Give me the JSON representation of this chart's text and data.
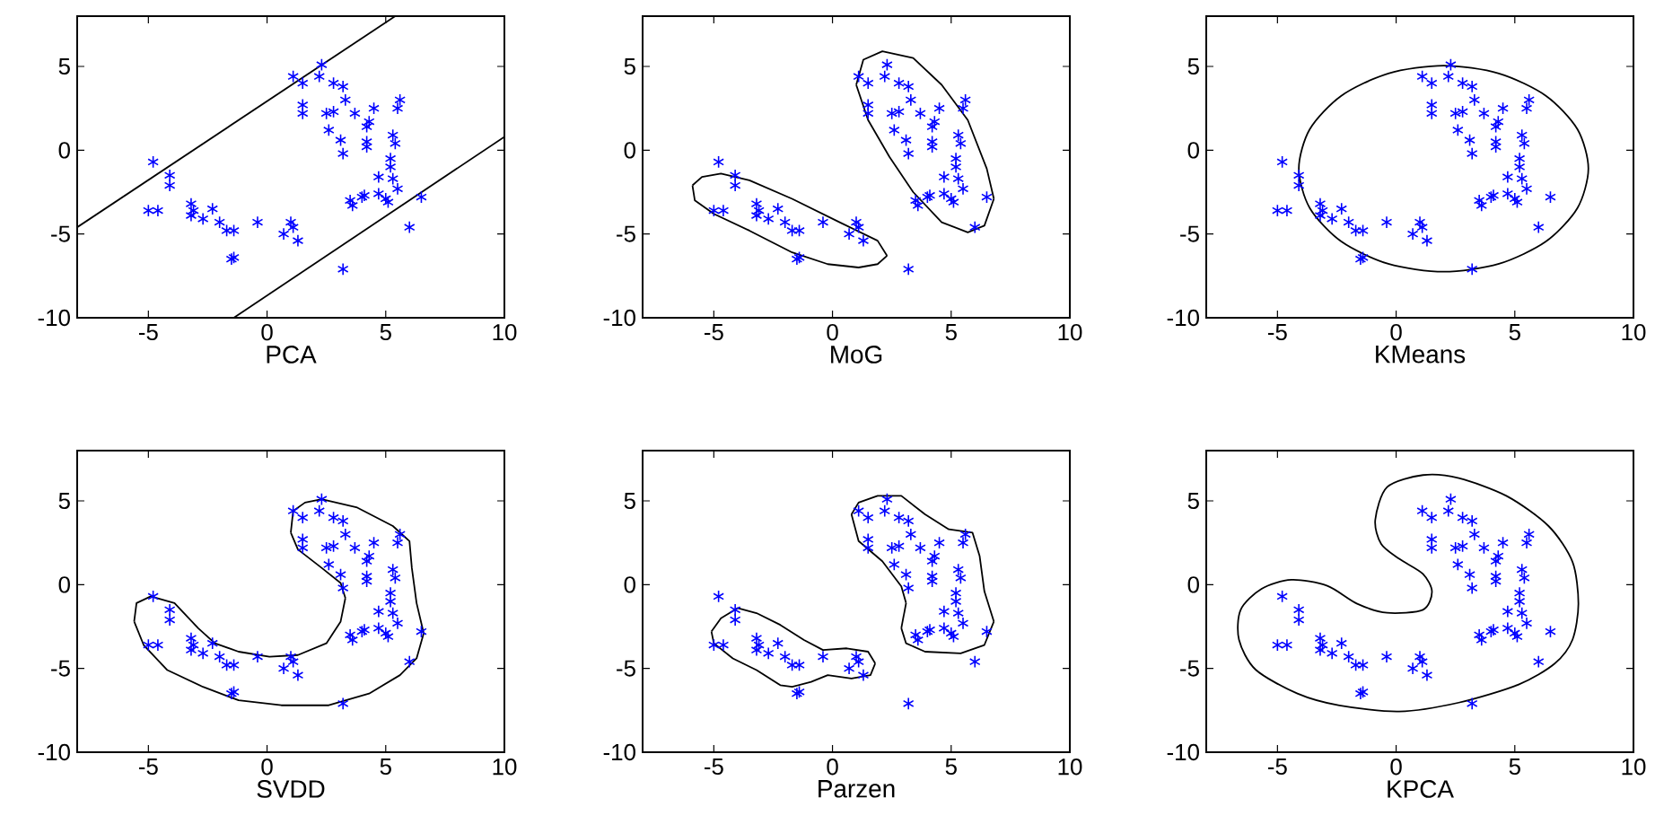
{
  "chart_data": [
    {
      "type": "scatter",
      "xlabel": "PCA",
      "xlim": [
        -8,
        10
      ],
      "ylim": [
        -10,
        8
      ],
      "xticks": [
        -5,
        0,
        5,
        10
      ],
      "yticks": [
        -10,
        -5,
        0,
        5
      ],
      "series": [
        {
          "marker": "cross",
          "color": "#0000ff",
          "x": [
            -4.8,
            -4.1,
            -4.1,
            -5.0,
            -4.6,
            -3.2,
            -3.1,
            -3.2,
            -2.7,
            -2.3,
            -2.0,
            -1.7,
            -1.4,
            -1.5,
            -1.4,
            -0.4,
            0.7,
            1.0,
            1.1,
            1.3,
            1.1,
            1.5,
            1.5,
            1.5,
            2.2,
            2.3,
            2.8,
            3.2,
            3.3,
            2.8,
            2.5,
            2.6,
            3.1,
            3.2,
            3.7,
            4.2,
            4.3,
            4.5,
            4.2,
            4.2,
            5.3,
            5.4,
            5.6,
            5.5,
            5.2,
            5.2,
            5.3,
            5.5,
            4.7,
            3.5,
            3.6,
            4.0,
            4.1,
            4.7,
            5.0,
            5.1,
            6.5,
            6.0,
            3.2
          ],
          "values": [
            -0.7,
            -1.5,
            -2.1,
            -3.6,
            -3.6,
            -3.2,
            -3.6,
            -3.9,
            -4.1,
            -3.5,
            -4.3,
            -4.8,
            -4.8,
            -6.5,
            -6.4,
            -4.3,
            -5.0,
            -4.3,
            -4.6,
            -5.4,
            4.4,
            4.0,
            2.7,
            2.2,
            4.4,
            5.1,
            4.0,
            3.8,
            3.0,
            2.3,
            2.2,
            1.2,
            0.6,
            -0.2,
            2.2,
            1.4,
            1.7,
            2.5,
            0.5,
            0.2,
            0.9,
            0.4,
            3.0,
            2.5,
            -0.5,
            -1.0,
            -1.7,
            -2.3,
            -1.6,
            -3.0,
            -3.3,
            -2.8,
            -2.7,
            -2.6,
            -2.9,
            -3.1,
            -2.8,
            -4.6,
            -7.1
          ]
        },
        {
          "type": "line",
          "color": "#000000",
          "x": [
            -8,
            5.4
          ],
          "values": [
            -4.6,
            8
          ]
        },
        {
          "type": "line",
          "color": "#000000",
          "x": [
            -1.4,
            10
          ],
          "values": [
            -10,
            0.8
          ]
        }
      ]
    },
    {
      "type": "scatter",
      "xlabel": "MoG",
      "xlim": [
        -8,
        10
      ],
      "ylim": [
        -10,
        8
      ],
      "xticks": [
        -5,
        0,
        5,
        10
      ],
      "yticks": [
        -10,
        -5,
        0,
        5
      ],
      "series": [
        {
          "marker": "cross",
          "color": "#0000ff",
          "x": [
            -4.8,
            -4.1,
            -4.1,
            -5.0,
            -4.6,
            -3.2,
            -3.1,
            -3.2,
            -2.7,
            -2.3,
            -2.0,
            -1.7,
            -1.4,
            -1.5,
            -1.4,
            -0.4,
            0.7,
            1.0,
            1.1,
            1.3,
            1.1,
            1.5,
            1.5,
            1.5,
            2.2,
            2.3,
            2.8,
            3.2,
            3.3,
            2.8,
            2.5,
            2.6,
            3.1,
            3.2,
            3.7,
            4.2,
            4.3,
            4.5,
            4.2,
            4.2,
            5.3,
            5.4,
            5.6,
            5.5,
            5.2,
            5.2,
            5.3,
            5.5,
            4.7,
            3.5,
            3.6,
            4.0,
            4.1,
            4.7,
            5.0,
            5.1,
            6.5,
            6.0,
            3.2
          ],
          "values": [
            -0.7,
            -1.5,
            -2.1,
            -3.6,
            -3.6,
            -3.2,
            -3.6,
            -3.9,
            -4.1,
            -3.5,
            -4.3,
            -4.8,
            -4.8,
            -6.5,
            -6.4,
            -4.3,
            -5.0,
            -4.3,
            -4.6,
            -5.4,
            4.4,
            4.0,
            2.7,
            2.2,
            4.4,
            5.1,
            4.0,
            3.8,
            3.0,
            2.3,
            2.2,
            1.2,
            0.6,
            -0.2,
            2.2,
            1.4,
            1.7,
            2.5,
            0.5,
            0.2,
            0.9,
            0.4,
            3.0,
            2.5,
            -0.5,
            -1.0,
            -1.7,
            -2.3,
            -1.6,
            -3.0,
            -3.3,
            -2.8,
            -2.7,
            -2.6,
            -2.9,
            -3.1,
            -2.8,
            -4.6,
            -7.1
          ]
        },
        {
          "type": "line",
          "color": "#000000",
          "x": [
            -5.9,
            -5.5,
            -4.7,
            -3.5,
            -1.7,
            0.3,
            1.9,
            2.3
          ],
          "values": [
            -2.1,
            -1.6,
            -1.4,
            -1.8,
            -2.9,
            -4.3,
            -5.4,
            -6.3
          ]
        },
        {
          "type": "line",
          "color": "#000000",
          "x": [
            -5.9,
            -5.8,
            -5.0,
            -3.5,
            -1.7,
            -0.2,
            1.1,
            1.9,
            2.3
          ],
          "values": [
            -2.1,
            -3.0,
            -3.8,
            -4.8,
            -6.1,
            -6.8,
            -7.0,
            -6.8,
            -6.3
          ]
        },
        {
          "type": "line",
          "color": "#000000",
          "x": [
            1.0,
            1.3,
            2.1,
            3.4,
            4.6,
            5.7,
            6.5,
            6.8
          ],
          "values": [
            3.9,
            5.4,
            5.9,
            5.5,
            3.9,
            1.8,
            -1.1,
            -2.9
          ]
        },
        {
          "type": "line",
          "color": "#000000",
          "x": [
            1.0,
            1.5,
            2.4,
            3.4,
            4.6,
            5.7,
            6.4,
            6.8
          ],
          "values": [
            3.9,
            1.8,
            -0.4,
            -2.5,
            -4.3,
            -4.9,
            -4.5,
            -2.9
          ]
        }
      ]
    },
    {
      "type": "scatter",
      "xlabel": "KMeans",
      "xlim": [
        -8,
        10
      ],
      "ylim": [
        -10,
        8
      ],
      "xticks": [
        -5,
        0,
        5,
        10
      ],
      "yticks": [
        -10,
        -5,
        0,
        5
      ],
      "series": [
        {
          "marker": "cross",
          "color": "#0000ff",
          "x": [
            -4.8,
            -4.1,
            -4.1,
            -5.0,
            -4.6,
            -3.2,
            -3.1,
            -3.2,
            -2.7,
            -2.3,
            -2.0,
            -1.7,
            -1.4,
            -1.5,
            -1.4,
            -0.4,
            0.7,
            1.0,
            1.1,
            1.3,
            1.1,
            1.5,
            1.5,
            1.5,
            2.2,
            2.3,
            2.8,
            3.2,
            3.3,
            2.8,
            2.5,
            2.6,
            3.1,
            3.2,
            3.7,
            4.2,
            4.3,
            4.5,
            4.2,
            4.2,
            5.3,
            5.4,
            5.6,
            5.5,
            5.2,
            5.2,
            5.3,
            5.5,
            4.7,
            3.5,
            3.6,
            4.0,
            4.1,
            4.7,
            5.0,
            5.1,
            6.5,
            6.0,
            3.2
          ],
          "values": [
            -0.7,
            -1.5,
            -2.1,
            -3.6,
            -3.6,
            -3.2,
            -3.6,
            -3.9,
            -4.1,
            -3.5,
            -4.3,
            -4.8,
            -4.8,
            -6.5,
            -6.4,
            -4.3,
            -5.0,
            -4.3,
            -4.6,
            -5.4,
            4.4,
            4.0,
            2.7,
            2.2,
            4.4,
            5.1,
            4.0,
            3.8,
            3.0,
            2.3,
            2.2,
            1.2,
            0.6,
            -0.2,
            2.2,
            1.4,
            1.7,
            2.5,
            0.5,
            0.2,
            0.9,
            0.4,
            3.0,
            2.5,
            -0.5,
            -1.0,
            -1.7,
            -2.3,
            -1.6,
            -3.0,
            -3.3,
            -2.8,
            -2.7,
            -2.6,
            -2.9,
            -3.1,
            -2.8,
            -4.6,
            -7.1
          ]
        }
      ]
    },
    {
      "type": "scatter",
      "xlabel": "SVDD",
      "xlim": [
        -8,
        10
      ],
      "ylim": [
        -10,
        8
      ],
      "xticks": [
        -5,
        0,
        5,
        10
      ],
      "yticks": [
        -10,
        -5,
        0,
        5
      ],
      "series": [
        {
          "marker": "cross",
          "color": "#0000ff",
          "x": [
            -4.8,
            -4.1,
            -4.1,
            -5.0,
            -4.6,
            -3.2,
            -3.1,
            -3.2,
            -2.7,
            -2.3,
            -2.0,
            -1.7,
            -1.4,
            -1.5,
            -1.4,
            -0.4,
            0.7,
            1.0,
            1.1,
            1.3,
            1.1,
            1.5,
            1.5,
            1.5,
            2.2,
            2.3,
            2.8,
            3.2,
            3.3,
            2.8,
            2.5,
            2.6,
            3.1,
            3.2,
            3.7,
            4.2,
            4.3,
            4.5,
            4.2,
            4.2,
            5.3,
            5.4,
            5.6,
            5.5,
            5.2,
            5.2,
            5.3,
            5.5,
            4.7,
            3.5,
            3.6,
            4.0,
            4.1,
            4.7,
            5.0,
            5.1,
            6.5,
            6.0,
            3.2
          ],
          "values": [
            -0.7,
            -1.5,
            -2.1,
            -3.6,
            -3.6,
            -3.2,
            -3.6,
            -3.9,
            -4.1,
            -3.5,
            -4.3,
            -4.8,
            -4.8,
            -6.5,
            -6.4,
            -4.3,
            -5.0,
            -4.3,
            -4.6,
            -5.4,
            4.4,
            4.0,
            2.7,
            2.2,
            4.4,
            5.1,
            4.0,
            3.8,
            3.0,
            2.3,
            2.2,
            1.2,
            0.6,
            -0.2,
            2.2,
            1.4,
            1.7,
            2.5,
            0.5,
            0.2,
            0.9,
            0.4,
            3.0,
            2.5,
            -0.5,
            -1.0,
            -1.7,
            -2.3,
            -1.6,
            -3.0,
            -3.3,
            -2.8,
            -2.7,
            -2.6,
            -2.9,
            -3.1,
            -2.8,
            -4.6,
            -7.1
          ]
        },
        {
          "type": "line",
          "color": "#000000",
          "x": [
            -5.6,
            -5.5,
            -4.9,
            -3.9,
            -2.9,
            -2.2,
            -1.2,
            0.1,
            1.3,
            2.5,
            3.1,
            3.3
          ],
          "values": [
            -2.2,
            -1.1,
            -0.7,
            -1.1,
            -2.6,
            -3.5,
            -4.0,
            -4.3,
            -4.2,
            -3.5,
            -2.2,
            -0.8
          ]
        },
        {
          "type": "line",
          "color": "#000000",
          "x": [
            1.0,
            1.3,
            2.3,
            3.1,
            3.3
          ],
          "values": [
            3.1,
            2.1,
            1.0,
            0.1,
            -0.8
          ]
        },
        {
          "type": "line",
          "color": "#000000",
          "x": [
            1.0,
            1.1,
            1.6,
            2.3,
            3.8,
            5.3,
            6.0,
            6.1,
            6.3,
            6.6
          ],
          "values": [
            3.1,
            4.4,
            4.9,
            5.1,
            4.6,
            3.5,
            2.6,
            1.0,
            -1.1,
            -2.9
          ]
        },
        {
          "type": "line",
          "color": "#000000",
          "x": [
            -5.6,
            -5.2,
            -4.2,
            -2.7,
            -1.2,
            0.6,
            2.6,
            4.3,
            5.6,
            6.3,
            6.6
          ],
          "values": [
            -2.2,
            -3.6,
            -5.1,
            -6.1,
            -6.9,
            -7.2,
            -7.2,
            -6.5,
            -5.4,
            -4.4,
            -2.9
          ]
        }
      ]
    },
    {
      "type": "scatter",
      "xlabel": "Parzen",
      "xlim": [
        -8,
        10
      ],
      "ylim": [
        -10,
        8
      ],
      "xticks": [
        -5,
        0,
        5,
        10
      ],
      "yticks": [
        -10,
        -5,
        0,
        5
      ],
      "series": [
        {
          "marker": "cross",
          "color": "#0000ff",
          "x": [
            -4.8,
            -4.1,
            -4.1,
            -5.0,
            -4.6,
            -3.2,
            -3.1,
            -3.2,
            -2.7,
            -2.3,
            -2.0,
            -1.7,
            -1.4,
            -1.5,
            -1.4,
            -0.4,
            0.7,
            1.0,
            1.1,
            1.3,
            1.1,
            1.5,
            1.5,
            1.5,
            2.2,
            2.3,
            2.8,
            3.2,
            3.3,
            2.8,
            2.5,
            2.6,
            3.1,
            3.2,
            3.7,
            4.2,
            4.3,
            4.5,
            4.2,
            4.2,
            5.3,
            5.4,
            5.6,
            5.5,
            5.2,
            5.2,
            5.3,
            5.5,
            4.7,
            3.5,
            3.6,
            4.0,
            4.1,
            4.7,
            5.0,
            5.1,
            6.5,
            6.0,
            3.2
          ],
          "values": [
            -0.7,
            -1.5,
            -2.1,
            -3.6,
            -3.6,
            -3.2,
            -3.6,
            -3.9,
            -4.1,
            -3.5,
            -4.3,
            -4.8,
            -4.8,
            -6.5,
            -6.4,
            -4.3,
            -5.0,
            -4.3,
            -4.6,
            -5.4,
            4.4,
            4.0,
            2.7,
            2.2,
            4.4,
            5.1,
            4.0,
            3.8,
            3.0,
            2.3,
            2.2,
            1.2,
            0.6,
            -0.2,
            2.2,
            1.4,
            1.7,
            2.5,
            0.5,
            0.2,
            0.9,
            0.4,
            3.0,
            2.5,
            -0.5,
            -1.0,
            -1.7,
            -2.3,
            -1.6,
            -3.0,
            -3.3,
            -2.8,
            -2.7,
            -2.6,
            -2.9,
            -3.1,
            -2.8,
            -4.6,
            -7.1
          ]
        },
        {
          "type": "line",
          "color": "#000000",
          "x": [
            -5.1,
            -4.7,
            -4.0,
            -3.2,
            -2.2,
            -1.2,
            -0.4,
            0.6,
            1.5,
            1.8
          ],
          "values": [
            -2.8,
            -2.0,
            -1.4,
            -1.7,
            -2.4,
            -3.3,
            -3.9,
            -3.8,
            -4.0,
            -4.7
          ]
        },
        {
          "type": "line",
          "color": "#000000",
          "x": [
            -5.1,
            -5.0,
            -4.2,
            -3.2,
            -2.2,
            -1.7,
            -0.9,
            -0.2,
            0.8,
            1.6,
            1.8
          ],
          "values": [
            -2.8,
            -3.5,
            -4.4,
            -5.1,
            -6.0,
            -6.1,
            -5.8,
            -5.4,
            -5.6,
            -5.4,
            -4.7
          ]
        },
        {
          "type": "line",
          "color": "#000000",
          "x": [
            0.8,
            1.1,
            1.9,
            2.9,
            3.9,
            4.9,
            5.9,
            6.2,
            6.4,
            6.8
          ],
          "values": [
            4.2,
            4.9,
            5.3,
            5.3,
            4.2,
            3.3,
            3.1,
            1.7,
            -0.4,
            -2.2
          ]
        },
        {
          "type": "line",
          "color": "#000000",
          "x": [
            0.8,
            1.1,
            2.1,
            2.9,
            3.1
          ],
          "values": [
            4.2,
            2.6,
            1.4,
            -0.1,
            -1.1
          ]
        },
        {
          "type": "line",
          "color": "#000000",
          "x": [
            2.9,
            3.1
          ],
          "values": [
            -2.6,
            -1.1
          ]
        },
        {
          "type": "line",
          "color": "#000000",
          "x": [
            2.9,
            3.1,
            3.9,
            5.4,
            6.4,
            6.8
          ],
          "values": [
            -2.6,
            -3.5,
            -4.0,
            -4.1,
            -3.6,
            -2.2
          ]
        }
      ]
    },
    {
      "type": "scatter",
      "xlabel": "KPCA",
      "xlim": [
        -8,
        10
      ],
      "ylim": [
        -10,
        8
      ],
      "xticks": [
        -5,
        0,
        5,
        10
      ],
      "yticks": [
        -10,
        -5,
        0,
        5
      ],
      "series": [
        {
          "marker": "cross",
          "color": "#0000ff",
          "x": [
            -4.8,
            -4.1,
            -4.1,
            -5.0,
            -4.6,
            -3.2,
            -3.1,
            -3.2,
            -2.7,
            -2.3,
            -2.0,
            -1.7,
            -1.4,
            -1.5,
            -1.4,
            -0.4,
            0.7,
            1.0,
            1.1,
            1.3,
            1.1,
            1.5,
            1.5,
            1.5,
            2.2,
            2.3,
            2.8,
            3.2,
            3.3,
            2.8,
            2.5,
            2.6,
            3.1,
            3.2,
            3.7,
            4.2,
            4.3,
            4.5,
            4.2,
            4.2,
            5.3,
            5.4,
            5.6,
            5.5,
            5.2,
            5.2,
            5.3,
            5.5,
            4.7,
            3.5,
            3.6,
            4.0,
            4.1,
            4.7,
            5.0,
            5.1,
            6.5,
            6.0,
            3.2
          ],
          "values": [
            -0.7,
            -1.5,
            -2.1,
            -3.6,
            -3.6,
            -3.2,
            -3.6,
            -3.9,
            -4.1,
            -3.5,
            -4.3,
            -4.8,
            -4.8,
            -6.5,
            -6.4,
            -4.3,
            -5.0,
            -4.3,
            -4.6,
            -5.4,
            4.4,
            4.0,
            2.7,
            2.2,
            4.4,
            5.1,
            4.0,
            3.8,
            3.0,
            2.3,
            2.2,
            1.2,
            0.6,
            -0.2,
            2.2,
            1.4,
            1.7,
            2.5,
            0.5,
            0.2,
            0.9,
            0.4,
            3.0,
            2.5,
            -0.5,
            -1.0,
            -1.7,
            -2.3,
            -1.6,
            -3.0,
            -3.3,
            -2.8,
            -2.7,
            -2.6,
            -2.9,
            -3.1,
            -2.8,
            -4.6,
            -7.1
          ]
        }
      ]
    }
  ]
}
